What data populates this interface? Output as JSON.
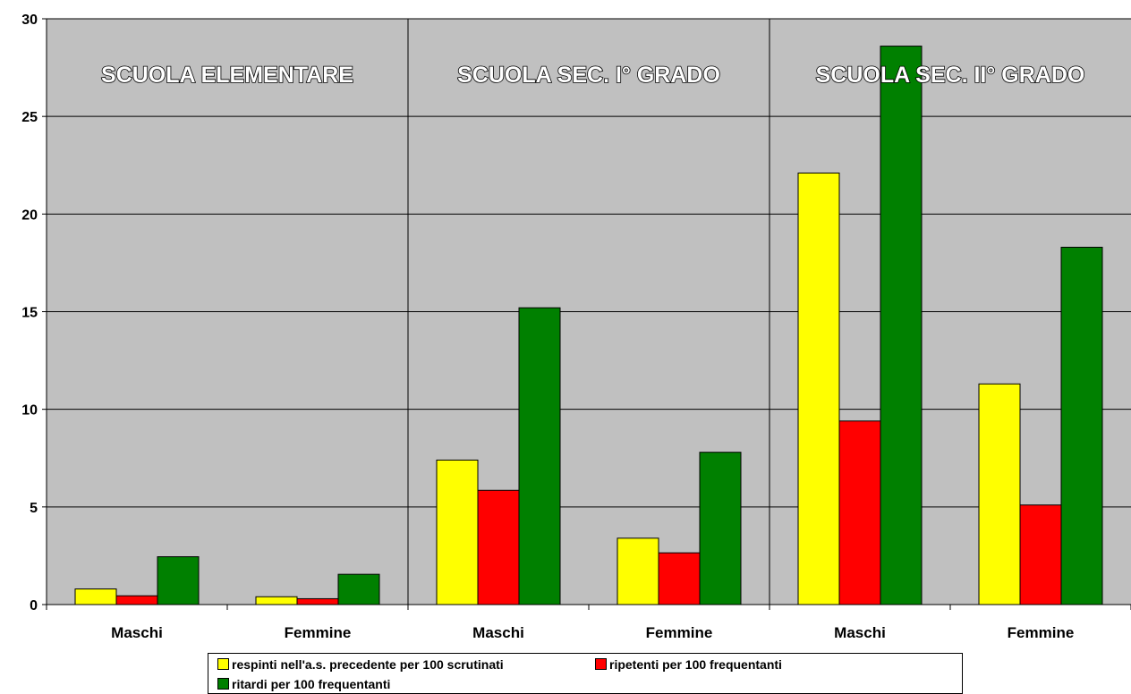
{
  "chart_data": {
    "type": "bar",
    "title": "",
    "xlabel": "",
    "ylabel": "",
    "ylim": [
      0,
      30
    ],
    "yticks": [
      0,
      5,
      10,
      15,
      20,
      25,
      30
    ],
    "grid": true,
    "plot_background": "#c0c0c0",
    "categories": [
      "Maschi",
      "Femmine",
      "Maschi",
      "Femmine",
      "Maschi",
      "Femmine"
    ],
    "groups": [
      {
        "label": "SCUOLA ELEMENTARE",
        "categories": [
          "Maschi",
          "Femmine"
        ]
      },
      {
        "label": "SCUOLA SEC. I° GRADO",
        "categories": [
          "Maschi",
          "Femmine"
        ]
      },
      {
        "label": "SCUOLA SEC. II° GRADO",
        "categories": [
          "Maschi",
          "Femmine"
        ]
      }
    ],
    "series": [
      {
        "name": "respinti nell'a.s. precedente per 100 scrutinati",
        "color": "#ffff00",
        "values": [
          0.8,
          0.4,
          7.4,
          3.4,
          22.1,
          11.3
        ]
      },
      {
        "name": "ripetenti per 100 frequentanti",
        "color": "#ff0000",
        "values": [
          0.45,
          0.3,
          5.85,
          2.65,
          9.4,
          5.1
        ]
      },
      {
        "name": "ritardi per 100 frequentanti",
        "color": "#008000",
        "values": [
          2.45,
          1.55,
          15.2,
          7.8,
          28.6,
          18.3
        ]
      }
    ],
    "legend_position": "bottom"
  }
}
